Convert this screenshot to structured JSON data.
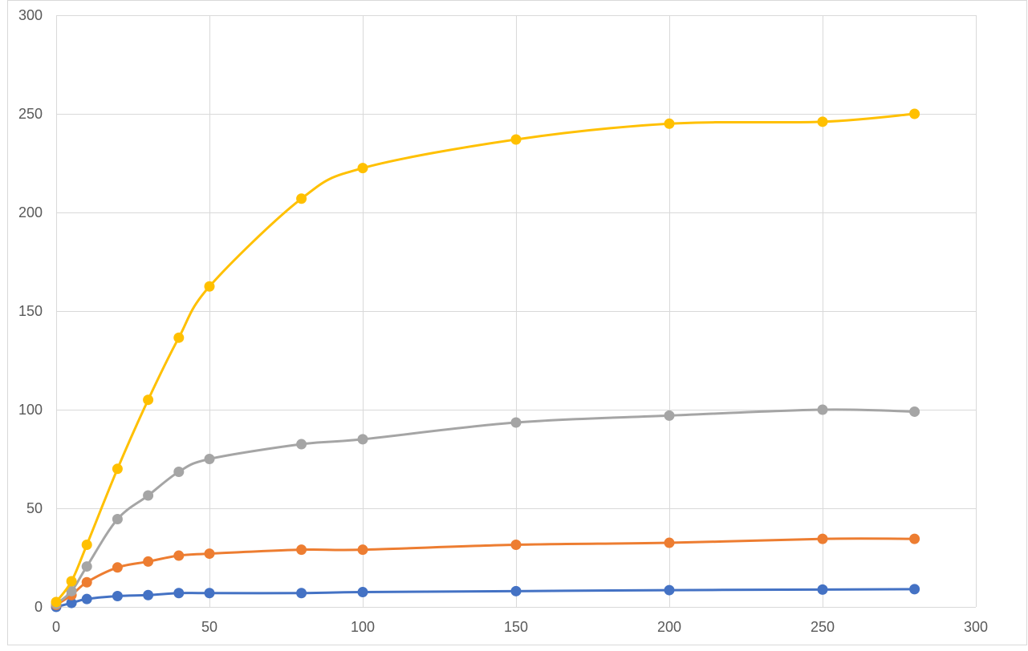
{
  "chart_data": {
    "type": "scatter",
    "title": "",
    "xlabel": "",
    "ylabel": "",
    "xlim": [
      0,
      300
    ],
    "ylim": [
      0,
      300
    ],
    "x_ticks": [
      0,
      50,
      100,
      150,
      200,
      250,
      300
    ],
    "y_ticks": [
      0,
      50,
      100,
      150,
      200,
      250,
      300
    ],
    "grid": true,
    "legend": "none",
    "smooth_lines": true,
    "x": [
      0,
      5,
      10,
      20,
      30,
      40,
      50,
      80,
      100,
      150,
      200,
      250,
      280
    ],
    "series": [
      {
        "color": "#4472C4",
        "values": [
          0,
          2,
          4,
          5.5,
          6,
          7,
          7,
          7,
          7.5,
          8,
          8.5,
          8.8,
          9
        ]
      },
      {
        "color": "#ED7D31",
        "values": [
          1,
          6,
          12.5,
          20,
          23,
          26,
          27,
          29,
          29,
          31.5,
          32.5,
          34.5,
          34.5
        ]
      },
      {
        "color": "#A5A5A5",
        "values": [
          1.5,
          8,
          20.5,
          44.5,
          56.5,
          68.5,
          75,
          82.5,
          85,
          93.5,
          97,
          100,
          99
        ]
      },
      {
        "color": "#FFC000",
        "values": [
          2.5,
          13,
          31.5,
          70,
          105,
          136.5,
          162.5,
          207,
          222.5,
          237,
          245,
          246,
          250
        ]
      }
    ]
  }
}
